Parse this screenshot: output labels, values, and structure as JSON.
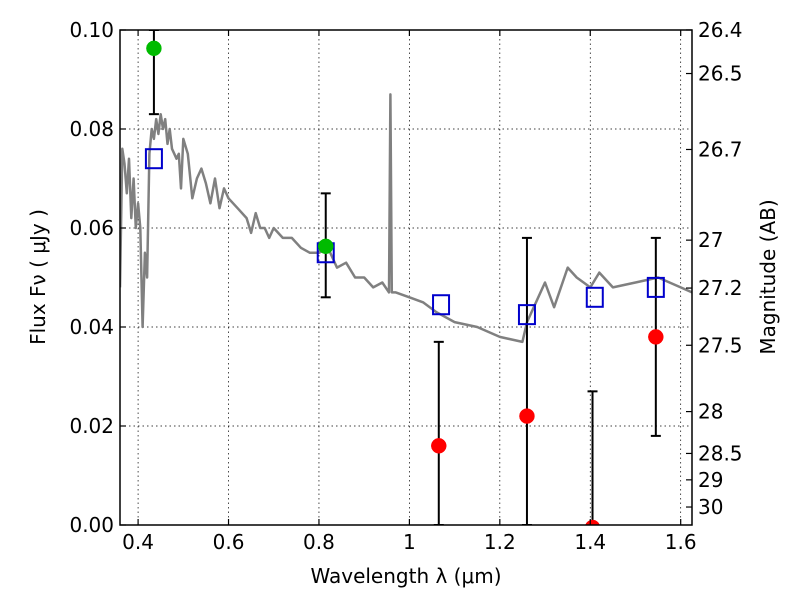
{
  "chart_data": {
    "type": "scatter",
    "title": "",
    "xlabel": "Wavelength  λ (μm)",
    "ylabel": "Flux  Fν  ( μJy )",
    "y2label": "Magnitude (AB)",
    "xlim": [
      0.36,
      1.625
    ],
    "ylim": [
      0.0,
      0.1
    ],
    "grid": true,
    "x_ticks": [
      0.4,
      0.6,
      0.8,
      1.0,
      1.2,
      1.4,
      1.6
    ],
    "x_tick_labels": [
      "0.4",
      "0.6",
      "0.8",
      "1",
      "1.2",
      "1.4",
      "1.6"
    ],
    "y_ticks": [
      0.0,
      0.02,
      0.04,
      0.06,
      0.08,
      0.1
    ],
    "y_tick_labels": [
      "0.00",
      "0.02",
      "0.04",
      "0.06",
      "0.08",
      "0.10"
    ],
    "y2_ticks": [
      26.4,
      26.5,
      26.7,
      27,
      27.2,
      27.5,
      28,
      28.5,
      29,
      30
    ],
    "y2_tick_labels": [
      "26.4",
      "26.5",
      "26.7",
      "27",
      "27.2",
      "27.5",
      "28",
      "28.5",
      "29",
      "30"
    ],
    "series": [
      {
        "kind": "model-spectrum-line",
        "color": "#808080",
        "x": [
          0.36,
          0.365,
          0.37,
          0.375,
          0.38,
          0.385,
          0.39,
          0.395,
          0.4,
          0.405,
          0.41,
          0.415,
          0.42,
          0.425,
          0.43,
          0.435,
          0.44,
          0.445,
          0.45,
          0.455,
          0.46,
          0.465,
          0.47,
          0.475,
          0.48,
          0.485,
          0.49,
          0.495,
          0.5,
          0.51,
          0.52,
          0.53,
          0.54,
          0.55,
          0.56,
          0.57,
          0.58,
          0.59,
          0.6,
          0.62,
          0.64,
          0.65,
          0.66,
          0.67,
          0.68,
          0.69,
          0.7,
          0.72,
          0.74,
          0.76,
          0.78,
          0.8,
          0.82,
          0.84,
          0.86,
          0.88,
          0.9,
          0.92,
          0.94,
          0.955,
          0.958,
          0.961,
          0.965,
          0.97,
          1.0,
          1.03,
          1.06,
          1.1,
          1.15,
          1.2,
          1.25,
          1.26,
          1.28,
          1.3,
          1.32,
          1.35,
          1.37,
          1.4,
          1.42,
          1.45,
          1.5,
          1.55,
          1.6,
          1.625
        ],
        "y": [
          0.048,
          0.076,
          0.073,
          0.067,
          0.074,
          0.062,
          0.07,
          0.06,
          0.065,
          0.06,
          0.04,
          0.055,
          0.05,
          0.075,
          0.08,
          0.078,
          0.082,
          0.079,
          0.083,
          0.08,
          0.082,
          0.077,
          0.08,
          0.076,
          0.075,
          0.074,
          0.075,
          0.068,
          0.078,
          0.075,
          0.066,
          0.07,
          0.072,
          0.069,
          0.065,
          0.07,
          0.064,
          0.068,
          0.066,
          0.064,
          0.062,
          0.059,
          0.063,
          0.06,
          0.06,
          0.058,
          0.06,
          0.058,
          0.058,
          0.056,
          0.055,
          0.055,
          0.056,
          0.052,
          0.053,
          0.05,
          0.05,
          0.048,
          0.049,
          0.047,
          0.087,
          0.047,
          0.047,
          0.047,
          0.046,
          0.045,
          0.043,
          0.041,
          0.04,
          0.038,
          0.037,
          0.041,
          0.045,
          0.049,
          0.044,
          0.052,
          0.05,
          0.048,
          0.051,
          0.048,
          0.049,
          0.05,
          0.048,
          0.047
        ]
      },
      {
        "kind": "model-bandpass-squares",
        "color": "#0000cc",
        "x": [
          0.435,
          0.815,
          1.07,
          1.26,
          1.41,
          1.545
        ],
        "y": [
          0.074,
          0.055,
          0.0445,
          0.0425,
          0.046,
          0.048
        ]
      },
      {
        "kind": "observed-points-green",
        "color": "#00bb00",
        "x": [
          0.435,
          0.815
        ],
        "y": [
          0.0963,
          0.0563
        ],
        "yerr_low": [
          0.083,
          0.046
        ],
        "yerr_high": [
          0.1,
          0.067
        ]
      },
      {
        "kind": "observed-points-red",
        "color": "#ff0000",
        "x": [
          1.065,
          1.26,
          1.405,
          1.545
        ],
        "y": [
          0.016,
          0.022,
          -0.0005,
          0.038
        ],
        "yerr_low": [
          0.0,
          0.0,
          0.0,
          0.018
        ],
        "yerr_high": [
          0.037,
          0.058,
          0.027,
          0.058
        ]
      }
    ]
  }
}
